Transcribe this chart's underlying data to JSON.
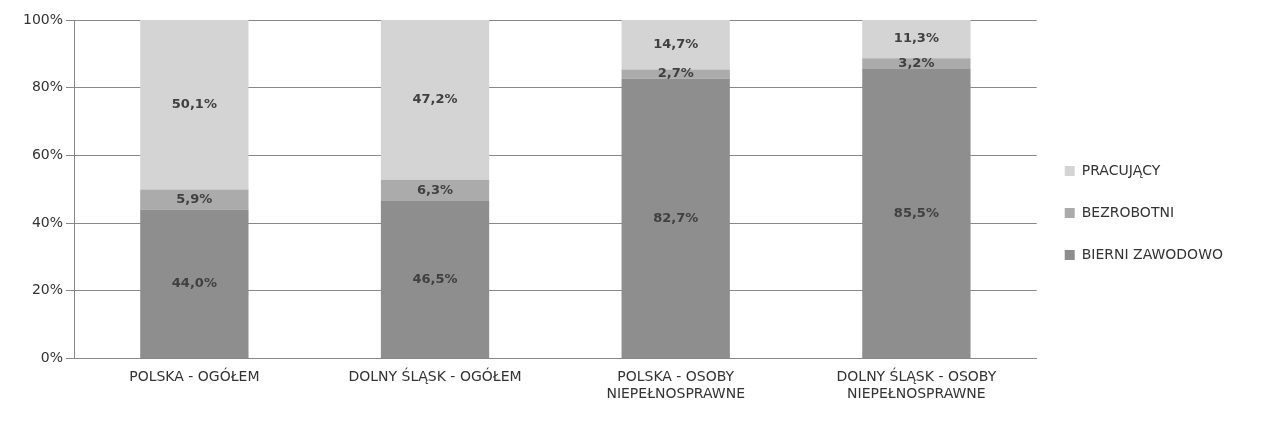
{
  "chart_data": {
    "type": "bar",
    "stacked": true,
    "categories": [
      "POLSKA - OGÓŁEM",
      "DOLNY ŚLĄSK - OGÓŁEM",
      "POLSKA - OSOBY NIEPEŁNOSPRAWNE",
      "DOLNY ŚLĄSK - OSOBY NIEPEŁNOSPRAWNE"
    ],
    "series": [
      {
        "name": "BIERNI ZAWODOWO",
        "color": "#8e8e8e",
        "values": [
          44.0,
          46.5,
          82.7,
          85.5
        ],
        "value_labels": [
          "44,0%",
          "46,5%",
          "82,7%",
          "85,5%"
        ]
      },
      {
        "name": "BEZROBOTNI",
        "color": "#ababab",
        "values": [
          5.9,
          6.3,
          2.7,
          3.2
        ],
        "value_labels": [
          "5,9%",
          "6,3%",
          "2,7%",
          "3,2%"
        ]
      },
      {
        "name": "PRACUJĄCY",
        "color": "#d4d4d4",
        "values": [
          50.1,
          47.2,
          14.7,
          11.3
        ],
        "value_labels": [
          "50,1%",
          "47,2%",
          "14,7%",
          "11,3%"
        ]
      }
    ],
    "ylim": [
      0,
      100
    ],
    "yticks": [
      {
        "value": 0,
        "label": "0%"
      },
      {
        "value": 20,
        "label": "20%"
      },
      {
        "value": 40,
        "label": "40%"
      },
      {
        "value": 60,
        "label": "60%"
      },
      {
        "value": 80,
        "label": "80%"
      },
      {
        "value": 100,
        "label": "100%"
      }
    ],
    "grid": "y",
    "legend": "right"
  }
}
